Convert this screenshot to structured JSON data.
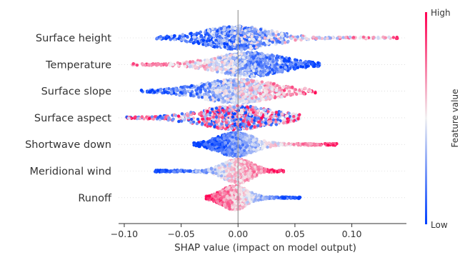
{
  "chart_data": {
    "type": "beeswarm",
    "xlabel": "SHAP value (impact on model output)",
    "xlim": [
      -0.105,
      0.148
    ],
    "xticks": [
      -0.1,
      -0.05,
      0.0,
      0.05,
      0.1
    ],
    "xtick_labels": [
      "−0.10",
      "−0.05",
      "0.00",
      "0.05",
      "0.10"
    ],
    "zero_line": true,
    "colorbar": {
      "label": "Feature value",
      "high_label": "High",
      "low_label": "Low",
      "high_color": "#ff0052",
      "mid_color": "#f2f2f2",
      "low_color": "#0040ff"
    },
    "features": [
      {
        "name": "Surface height",
        "min": -0.072,
        "max": 0.14,
        "peak": 0.0,
        "spread": 0.018,
        "tail": "right",
        "color_trend": 1,
        "mix": 0.55
      },
      {
        "name": "Temperature",
        "min": -0.093,
        "max": 0.072,
        "peak": 0.01,
        "spread": 0.018,
        "tail": "left",
        "color_trend": -1,
        "mix": 0.4
      },
      {
        "name": "Surface slope",
        "min": -0.085,
        "max": 0.068,
        "peak": 0.0,
        "spread": 0.02,
        "tail": "left",
        "color_trend": 1,
        "mix": 0.45
      },
      {
        "name": "Surface aspect",
        "min": -0.098,
        "max": 0.054,
        "peak": 0.0,
        "spread": 0.02,
        "tail": "left",
        "color_trend": 0,
        "mix": 0.85
      },
      {
        "name": "Shortwave down",
        "min": -0.039,
        "max": 0.087,
        "peak": -0.002,
        "spread": 0.01,
        "tail": "right",
        "color_trend": 1,
        "mix": 0.3
      },
      {
        "name": "Meridional wind",
        "min": -0.073,
        "max": 0.04,
        "peak": 0.0,
        "spread": 0.008,
        "tail": "left",
        "color_trend": 1,
        "mix": 0.3
      },
      {
        "name": "Runoff",
        "min": -0.028,
        "max": 0.055,
        "peak": -0.003,
        "spread": 0.007,
        "tail": "right",
        "color_trend": -1,
        "mix": 0.3
      }
    ]
  }
}
